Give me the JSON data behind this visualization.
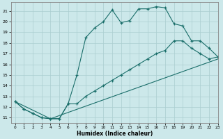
{
  "xlabel": "Humidex (Indice chaleur)",
  "bg_color": "#cce8ea",
  "grid_color": "#aacdd0",
  "line_color": "#1a6e6a",
  "line1_x": [
    0,
    1,
    2,
    3,
    4,
    5,
    6,
    7,
    8,
    9,
    10,
    11,
    12,
    13,
    14,
    15,
    16,
    17,
    18,
    19,
    20,
    21,
    22,
    23
  ],
  "line1_y": [
    12.5,
    11.8,
    11.4,
    11.0,
    10.9,
    10.9,
    12.3,
    15.0,
    18.5,
    19.4,
    20.0,
    21.1,
    19.9,
    20.1,
    21.2,
    21.2,
    21.4,
    21.3,
    19.8,
    19.6,
    18.2,
    18.2,
    17.5,
    16.7
  ],
  "line2_x": [
    0,
    1,
    2,
    3,
    4,
    5,
    6,
    7,
    8,
    9,
    10,
    11,
    12,
    13,
    14,
    15,
    16,
    17,
    18,
    19,
    20,
    21,
    22,
    23
  ],
  "line2_y": [
    12.5,
    11.8,
    11.4,
    11.0,
    10.9,
    10.9,
    12.3,
    12.3,
    13.0,
    13.5,
    14.0,
    14.5,
    15.0,
    15.5,
    16.0,
    16.5,
    17.0,
    17.3,
    18.2,
    18.2,
    17.5,
    17.0,
    16.5,
    16.7
  ],
  "line3_x": [
    0,
    4,
    23
  ],
  "line3_y": [
    12.5,
    10.9,
    16.5
  ],
  "xlim": [
    -0.5,
    23
  ],
  "ylim": [
    10.5,
    21.8
  ],
  "xticks": [
    0,
    1,
    2,
    3,
    4,
    5,
    6,
    7,
    8,
    9,
    10,
    11,
    12,
    13,
    14,
    15,
    16,
    17,
    18,
    19,
    20,
    21,
    22,
    23
  ],
  "yticks": [
    11,
    12,
    13,
    14,
    15,
    16,
    17,
    18,
    19,
    20,
    21
  ]
}
